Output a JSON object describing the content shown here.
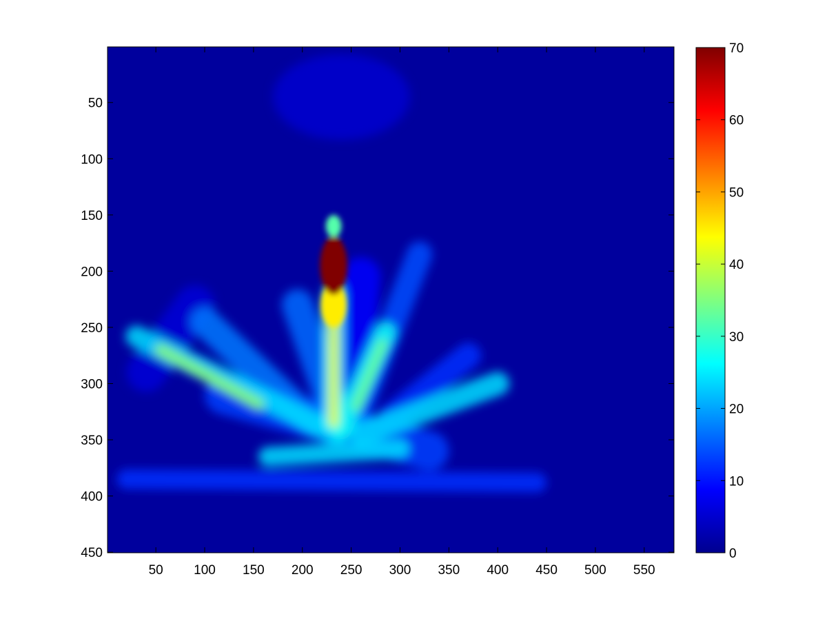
{
  "chart_data": {
    "type": "heatmap",
    "title": "",
    "xlabel": "",
    "ylabel": "",
    "xlim": [
      1,
      580
    ],
    "ylim": [
      1,
      450
    ],
    "y_reversed": true,
    "x_ticks": [
      50,
      100,
      150,
      200,
      250,
      300,
      350,
      400,
      450,
      500,
      550
    ],
    "y_ticks": [
      50,
      100,
      150,
      200,
      250,
      300,
      350,
      400,
      450
    ],
    "colorbar": {
      "colormap": "jet",
      "range": [
        0,
        70
      ],
      "ticks": [
        0,
        10,
        20,
        30,
        40,
        50,
        60,
        70
      ]
    },
    "background_value": 2,
    "hotspots": [
      {
        "x": 232,
        "y": 195,
        "rx": 14,
        "ry": 26,
        "value": 70
      },
      {
        "x": 232,
        "y": 230,
        "rx": 13,
        "ry": 20,
        "value": 45
      },
      {
        "x": 232,
        "y": 160,
        "rx": 8,
        "ry": 10,
        "value": 32
      }
    ],
    "strokes": [
      {
        "from": [
          232,
          220
        ],
        "to": [
          232,
          335
        ],
        "width": 10,
        "value": 44
      },
      {
        "from": [
          232,
          220
        ],
        "to": [
          232,
          335
        ],
        "width": 22,
        "value": 26
      },
      {
        "from": [
          30,
          258
        ],
        "to": [
          235,
          345
        ],
        "width": 22,
        "value": 24
      },
      {
        "from": [
          55,
          270
        ],
        "to": [
          155,
          318
        ],
        "width": 12,
        "value": 36
      },
      {
        "from": [
          100,
          245
        ],
        "to": [
          210,
          335
        ],
        "width": 30,
        "value": 17
      },
      {
        "from": [
          195,
          230
        ],
        "to": [
          235,
          330
        ],
        "width": 32,
        "value": 16
      },
      {
        "from": [
          285,
          255
        ],
        "to": [
          240,
          340
        ],
        "width": 22,
        "value": 27
      },
      {
        "from": [
          282,
          265
        ],
        "to": [
          255,
          320
        ],
        "width": 10,
        "value": 34
      },
      {
        "from": [
          320,
          185
        ],
        "to": [
          255,
          330
        ],
        "width": 26,
        "value": 14
      },
      {
        "from": [
          400,
          300
        ],
        "to": [
          260,
          345
        ],
        "width": 24,
        "value": 24
      },
      {
        "from": [
          370,
          275
        ],
        "to": [
          290,
          330
        ],
        "width": 26,
        "value": 12
      },
      {
        "from": [
          165,
          365
        ],
        "to": [
          300,
          358
        ],
        "width": 20,
        "value": 24
      },
      {
        "from": [
          120,
          310
        ],
        "to": [
          330,
          360
        ],
        "width": 40,
        "value": 13
      },
      {
        "from": [
          20,
          385
        ],
        "to": [
          440,
          388
        ],
        "width": 20,
        "value": 12
      },
      {
        "from": [
          260,
          205
        ],
        "to": [
          250,
          300
        ],
        "width": 40,
        "value": 9
      },
      {
        "from": [
          90,
          230
        ],
        "to": [
          40,
          290
        ],
        "width": 40,
        "value": 6
      }
    ],
    "faint_regions": [
      {
        "x": 240,
        "y": 45,
        "rx": 70,
        "ry": 38,
        "value": 5
      }
    ]
  }
}
